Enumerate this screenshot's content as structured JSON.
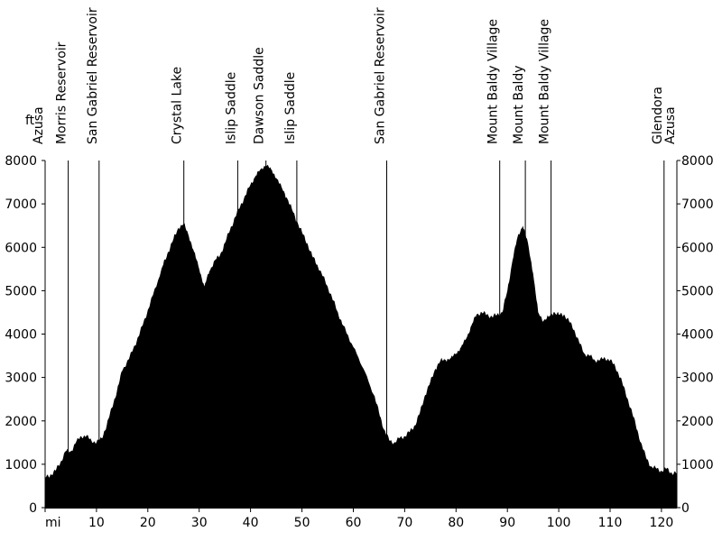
{
  "chart_data": {
    "type": "area",
    "title": "",
    "xlabel": "mi",
    "ylabel": "ft",
    "xlim": [
      0,
      123
    ],
    "ylim": [
      0,
      8000
    ],
    "x_ticks": [
      0,
      10,
      20,
      30,
      40,
      50,
      60,
      70,
      80,
      90,
      100,
      110,
      120
    ],
    "y_ticks": [
      0,
      1000,
      2000,
      3000,
      4000,
      5000,
      6000,
      7000,
      8000
    ],
    "grid": false,
    "fill_color": "#000000",
    "series": [
      {
        "x": [
          0,
          1,
          2,
          3,
          4,
          5,
          6,
          7,
          8,
          9,
          10,
          11,
          12,
          13,
          14,
          15,
          17,
          19,
          21,
          23,
          24,
          25,
          26,
          27,
          28,
          29,
          30,
          31,
          32,
          33,
          34,
          35,
          36,
          37,
          38,
          39,
          40,
          41,
          42,
          43,
          44,
          45,
          46,
          47,
          48,
          49,
          50,
          51,
          52,
          53,
          55,
          57,
          58,
          60,
          62,
          64,
          65,
          66,
          67,
          68,
          69,
          70,
          71,
          72,
          73,
          74,
          75,
          76,
          77,
          78,
          79,
          80,
          81,
          82,
          83,
          84,
          85,
          86,
          87,
          88,
          89,
          90,
          91,
          92,
          93,
          94,
          95,
          96,
          97,
          98,
          99,
          100,
          101,
          102,
          103,
          104,
          105,
          106,
          107,
          108,
          109,
          110,
          111,
          112,
          113,
          114,
          115,
          116,
          117,
          118,
          119,
          120,
          121,
          122,
          123
        ],
        "y": [
          700,
          750,
          850,
          1050,
          1300,
          1300,
          1500,
          1650,
          1650,
          1550,
          1500,
          1600,
          1900,
          2300,
          2700,
          3150,
          3600,
          4200,
          4900,
          5600,
          5900,
          6200,
          6450,
          6550,
          6250,
          5900,
          5500,
          5100,
          5450,
          5700,
          5800,
          6100,
          6400,
          6700,
          6950,
          7200,
          7450,
          7650,
          7800,
          7900,
          7800,
          7600,
          7400,
          7150,
          6900,
          6600,
          6350,
          6100,
          5800,
          5600,
          5100,
          4500,
          4200,
          3700,
          3200,
          2600,
          2200,
          1800,
          1550,
          1500,
          1600,
          1650,
          1750,
          1900,
          2200,
          2600,
          2900,
          3200,
          3400,
          3400,
          3450,
          3550,
          3700,
          3900,
          4200,
          4450,
          4500,
          4450,
          4400,
          4450,
          4500,
          5000,
          5700,
          6250,
          6500,
          6100,
          5400,
          4500,
          4300,
          4400,
          4500,
          4450,
          4450,
          4300,
          4100,
          3800,
          3550,
          3500,
          3400,
          3400,
          3450,
          3400,
          3250,
          3000,
          2650,
          2300,
          1900,
          1500,
          1150,
          950,
          900,
          850,
          900,
          800,
          800
        ]
      }
    ],
    "landmarks": [
      {
        "label": "Azusa",
        "x": 0
      },
      {
        "label": "Morris Reservoir",
        "x": 4.5
      },
      {
        "label": "San Gabriel Reservoir",
        "x": 10.5
      },
      {
        "label": "Crystal Lake",
        "x": 27
      },
      {
        "label": "Islip Saddle",
        "x": 37.5
      },
      {
        "label": "Dawson Saddle",
        "x": 43
      },
      {
        "label": "Islip Saddle",
        "x": 49
      },
      {
        "label": "San Gabriel Reservoir",
        "x": 66.5
      },
      {
        "label": "Mount Baldy Village",
        "x": 88.5
      },
      {
        "label": "Mount Baldy",
        "x": 93.5
      },
      {
        "label": "Mount Baldy Village",
        "x": 98.5
      },
      {
        "label": "Glendora",
        "x": 120.5
      },
      {
        "label": "Azusa",
        "x": 123
      }
    ]
  }
}
